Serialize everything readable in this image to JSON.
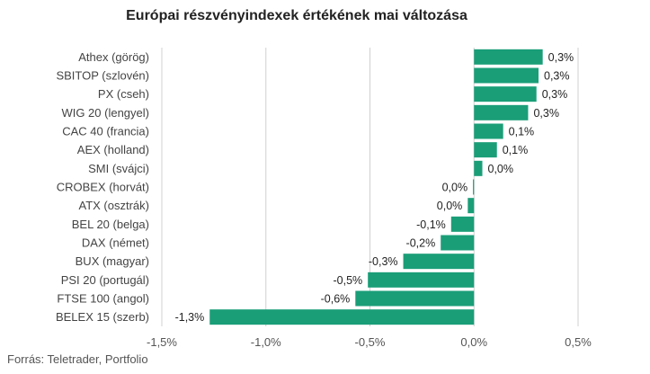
{
  "chart_data": {
    "type": "bar",
    "orientation": "horizontal",
    "title": "Európai részvényindexek értékének mai változása",
    "source": "Forrás: Teletrader, Portfolio",
    "bar_color": "#1a9e78",
    "grid": true,
    "xlim": [
      -1.5,
      0.5
    ],
    "x_ticks": [
      -1.5,
      -1.0,
      -0.5,
      0.0,
      0.5
    ],
    "x_tick_labels": [
      "-1,5%",
      "-1,0%",
      "-0,5%",
      "0,0%",
      "0,5%"
    ],
    "categories": [
      "Athex (görög)",
      "SBITOP (szlovén)",
      "PX (cseh)",
      "WIG 20 (lengyel)",
      "CAC 40 (francia)",
      "AEX (holland)",
      "SMI (svájci)",
      "CROBEX (horvát)",
      "ATX (osztrák)",
      "BEL 20 (belga)",
      "DAX (német)",
      "BUX (magyar)",
      "PSI 20 (portugál)",
      "FTSE 100 (angol)",
      "BELEX 15 (szerb)"
    ],
    "values": [
      0.33,
      0.31,
      0.3,
      0.26,
      0.14,
      0.11,
      0.04,
      -0.005,
      -0.03,
      -0.11,
      -0.16,
      -0.34,
      -0.51,
      -0.57,
      -1.27
    ],
    "value_labels": [
      "0,3%",
      "0,3%",
      "0,3%",
      "0,3%",
      "0,1%",
      "0,1%",
      "0,0%",
      "0,0%",
      "0,0%",
      "-0,1%",
      "-0,2%",
      "-0,3%",
      "-0,5%",
      "-0,6%",
      "-1,3%"
    ]
  }
}
